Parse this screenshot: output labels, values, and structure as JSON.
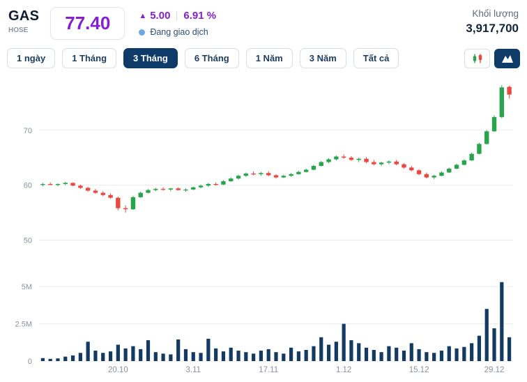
{
  "header": {
    "ticker": "GAS",
    "exchange": "HOSE",
    "price": "77.40",
    "change_arrow": "▲",
    "change": "5.00",
    "change_percent": "6.91 %",
    "status": "Đang giao dịch",
    "volume_label": "Khối lượng",
    "volume_value": "3,917,700"
  },
  "tabs": [
    {
      "label": "1 ngày",
      "active": false
    },
    {
      "label": "1 Tháng",
      "active": false
    },
    {
      "label": "3 Tháng",
      "active": true
    },
    {
      "label": "6 Tháng",
      "active": false
    },
    {
      "label": "1 Năm",
      "active": false
    },
    {
      "label": "3 Năm",
      "active": false
    },
    {
      "label": "Tất cả",
      "active": false
    }
  ],
  "view_toggle": {
    "candlestick_icon": "candlestick-chart",
    "area_icon": "area-chart",
    "active": "area_icon"
  },
  "colors": {
    "accent_purple": "#8520d0",
    "active_tab_navy": "#0e3b68",
    "up_green": "#28a44c",
    "down_red": "#e8483f",
    "volume_bar": "#123a63",
    "status_dot_blue": "#6aa9e4"
  },
  "chart_data": {
    "type": "candlestick+volume",
    "title": "GAS 3-month price chart",
    "price_axis_ticks": [
      50,
      60,
      70
    ],
    "volume_axis_ticks": [
      {
        "value": 0,
        "label": "0"
      },
      {
        "value": 2.5,
        "label": "2.5M"
      },
      {
        "value": 5,
        "label": "5M"
      }
    ],
    "x_ticks": [
      {
        "index": 10,
        "label": "20.10"
      },
      {
        "index": 20,
        "label": "3.11"
      },
      {
        "index": 30,
        "label": "17.11"
      },
      {
        "index": 40,
        "label": "1.12"
      },
      {
        "index": 50,
        "label": "15.12"
      },
      {
        "index": 60,
        "label": "29.12"
      }
    ],
    "price_range_shown": [
      50,
      78
    ],
    "candles": [
      [
        60.1,
        60.4,
        59.8,
        60.2
      ],
      [
        60.2,
        60.5,
        60.0,
        60.1
      ],
      [
        60.1,
        60.3,
        59.8,
        60.2
      ],
      [
        60.2,
        60.6,
        60.0,
        60.4
      ],
      [
        60.4,
        60.5,
        59.8,
        59.9
      ],
      [
        59.9,
        60.1,
        59.3,
        59.5
      ],
      [
        59.5,
        59.7,
        58.8,
        59.0
      ],
      [
        59.0,
        59.3,
        58.4,
        58.6
      ],
      [
        58.6,
        58.9,
        58.0,
        58.2
      ],
      [
        58.2,
        58.5,
        57.5,
        57.7
      ],
      [
        57.7,
        57.9,
        55.4,
        55.8
      ],
      [
        55.8,
        56.3,
        55.0,
        55.6
      ],
      [
        55.6,
        58.0,
        55.5,
        57.8
      ],
      [
        57.8,
        58.8,
        57.7,
        58.6
      ],
      [
        58.6,
        59.3,
        58.5,
        59.1
      ],
      [
        59.1,
        59.5,
        58.9,
        59.3
      ],
      [
        59.3,
        59.6,
        59.0,
        59.2
      ],
      [
        59.2,
        59.5,
        58.9,
        59.4
      ],
      [
        59.4,
        59.6,
        59.0,
        59.1
      ],
      [
        59.1,
        59.4,
        58.8,
        59.2
      ],
      [
        59.2,
        59.7,
        59.1,
        59.6
      ],
      [
        59.6,
        60.1,
        59.4,
        59.9
      ],
      [
        59.9,
        60.4,
        59.7,
        60.2
      ],
      [
        60.2,
        60.5,
        59.9,
        60.1
      ],
      [
        60.1,
        60.9,
        60.0,
        60.7
      ],
      [
        60.7,
        61.4,
        60.6,
        61.2
      ],
      [
        61.2,
        61.9,
        61.0,
        61.7
      ],
      [
        61.7,
        62.3,
        61.5,
        62.1
      ],
      [
        62.1,
        62.5,
        61.8,
        62.0
      ],
      [
        62.0,
        62.4,
        61.7,
        62.2
      ],
      [
        62.2,
        62.5,
        61.6,
        61.8
      ],
      [
        61.8,
        62.0,
        61.2,
        61.4
      ],
      [
        61.4,
        61.9,
        61.3,
        61.7
      ],
      [
        61.7,
        62.2,
        61.5,
        62.0
      ],
      [
        62.0,
        62.6,
        61.9,
        62.4
      ],
      [
        62.4,
        63.0,
        62.3,
        62.8
      ],
      [
        62.8,
        63.7,
        62.7,
        63.5
      ],
      [
        63.5,
        64.4,
        63.4,
        64.2
      ],
      [
        64.2,
        64.9,
        64.0,
        64.7
      ],
      [
        64.7,
        65.4,
        64.5,
        65.2
      ],
      [
        65.2,
        65.6,
        64.8,
        65.0
      ],
      [
        65.0,
        65.3,
        64.4,
        64.6
      ],
      [
        64.6,
        65.0,
        64.2,
        64.8
      ],
      [
        64.8,
        65.1,
        64.0,
        64.2
      ],
      [
        64.2,
        64.6,
        63.6,
        63.8
      ],
      [
        63.8,
        64.3,
        63.5,
        64.1
      ],
      [
        64.1,
        64.5,
        63.8,
        64.3
      ],
      [
        64.3,
        64.6,
        63.6,
        63.8
      ],
      [
        63.8,
        64.0,
        63.0,
        63.2
      ],
      [
        63.2,
        63.5,
        62.5,
        62.7
      ],
      [
        62.7,
        62.9,
        61.8,
        62.0
      ],
      [
        62.0,
        62.3,
        61.2,
        61.4
      ],
      [
        61.4,
        61.9,
        61.1,
        61.7
      ],
      [
        61.7,
        62.5,
        61.6,
        62.3
      ],
      [
        62.3,
        63.2,
        62.2,
        63.0
      ],
      [
        63.0,
        63.9,
        62.9,
        63.7
      ],
      [
        63.7,
        64.7,
        63.6,
        64.5
      ],
      [
        64.5,
        65.9,
        64.4,
        65.7
      ],
      [
        65.7,
        67.7,
        65.6,
        67.5
      ],
      [
        67.5,
        70.0,
        67.4,
        69.8
      ],
      [
        69.8,
        72.7,
        69.7,
        72.4
      ],
      [
        72.4,
        78.2,
        72.2,
        77.8
      ],
      [
        77.9,
        78.1,
        75.8,
        76.5
      ]
    ],
    "volumes_m": [
      0.2,
      0.15,
      0.18,
      0.3,
      0.38,
      0.55,
      1.3,
      0.7,
      0.55,
      0.65,
      1.1,
      0.85,
      1.0,
      0.8,
      1.4,
      0.6,
      0.5,
      0.45,
      1.45,
      0.8,
      0.6,
      0.55,
      1.5,
      0.85,
      0.65,
      0.9,
      0.7,
      0.6,
      0.5,
      0.7,
      0.8,
      0.6,
      0.5,
      0.9,
      0.65,
      0.75,
      1.0,
      1.6,
      1.1,
      1.3,
      2.5,
      1.4,
      1.2,
      0.9,
      0.75,
      0.6,
      1.0,
      0.9,
      0.7,
      1.2,
      0.8,
      0.6,
      0.55,
      0.7,
      1.0,
      0.85,
      0.95,
      1.2,
      1.7,
      3.5,
      2.2,
      5.3,
      1.6
    ]
  }
}
